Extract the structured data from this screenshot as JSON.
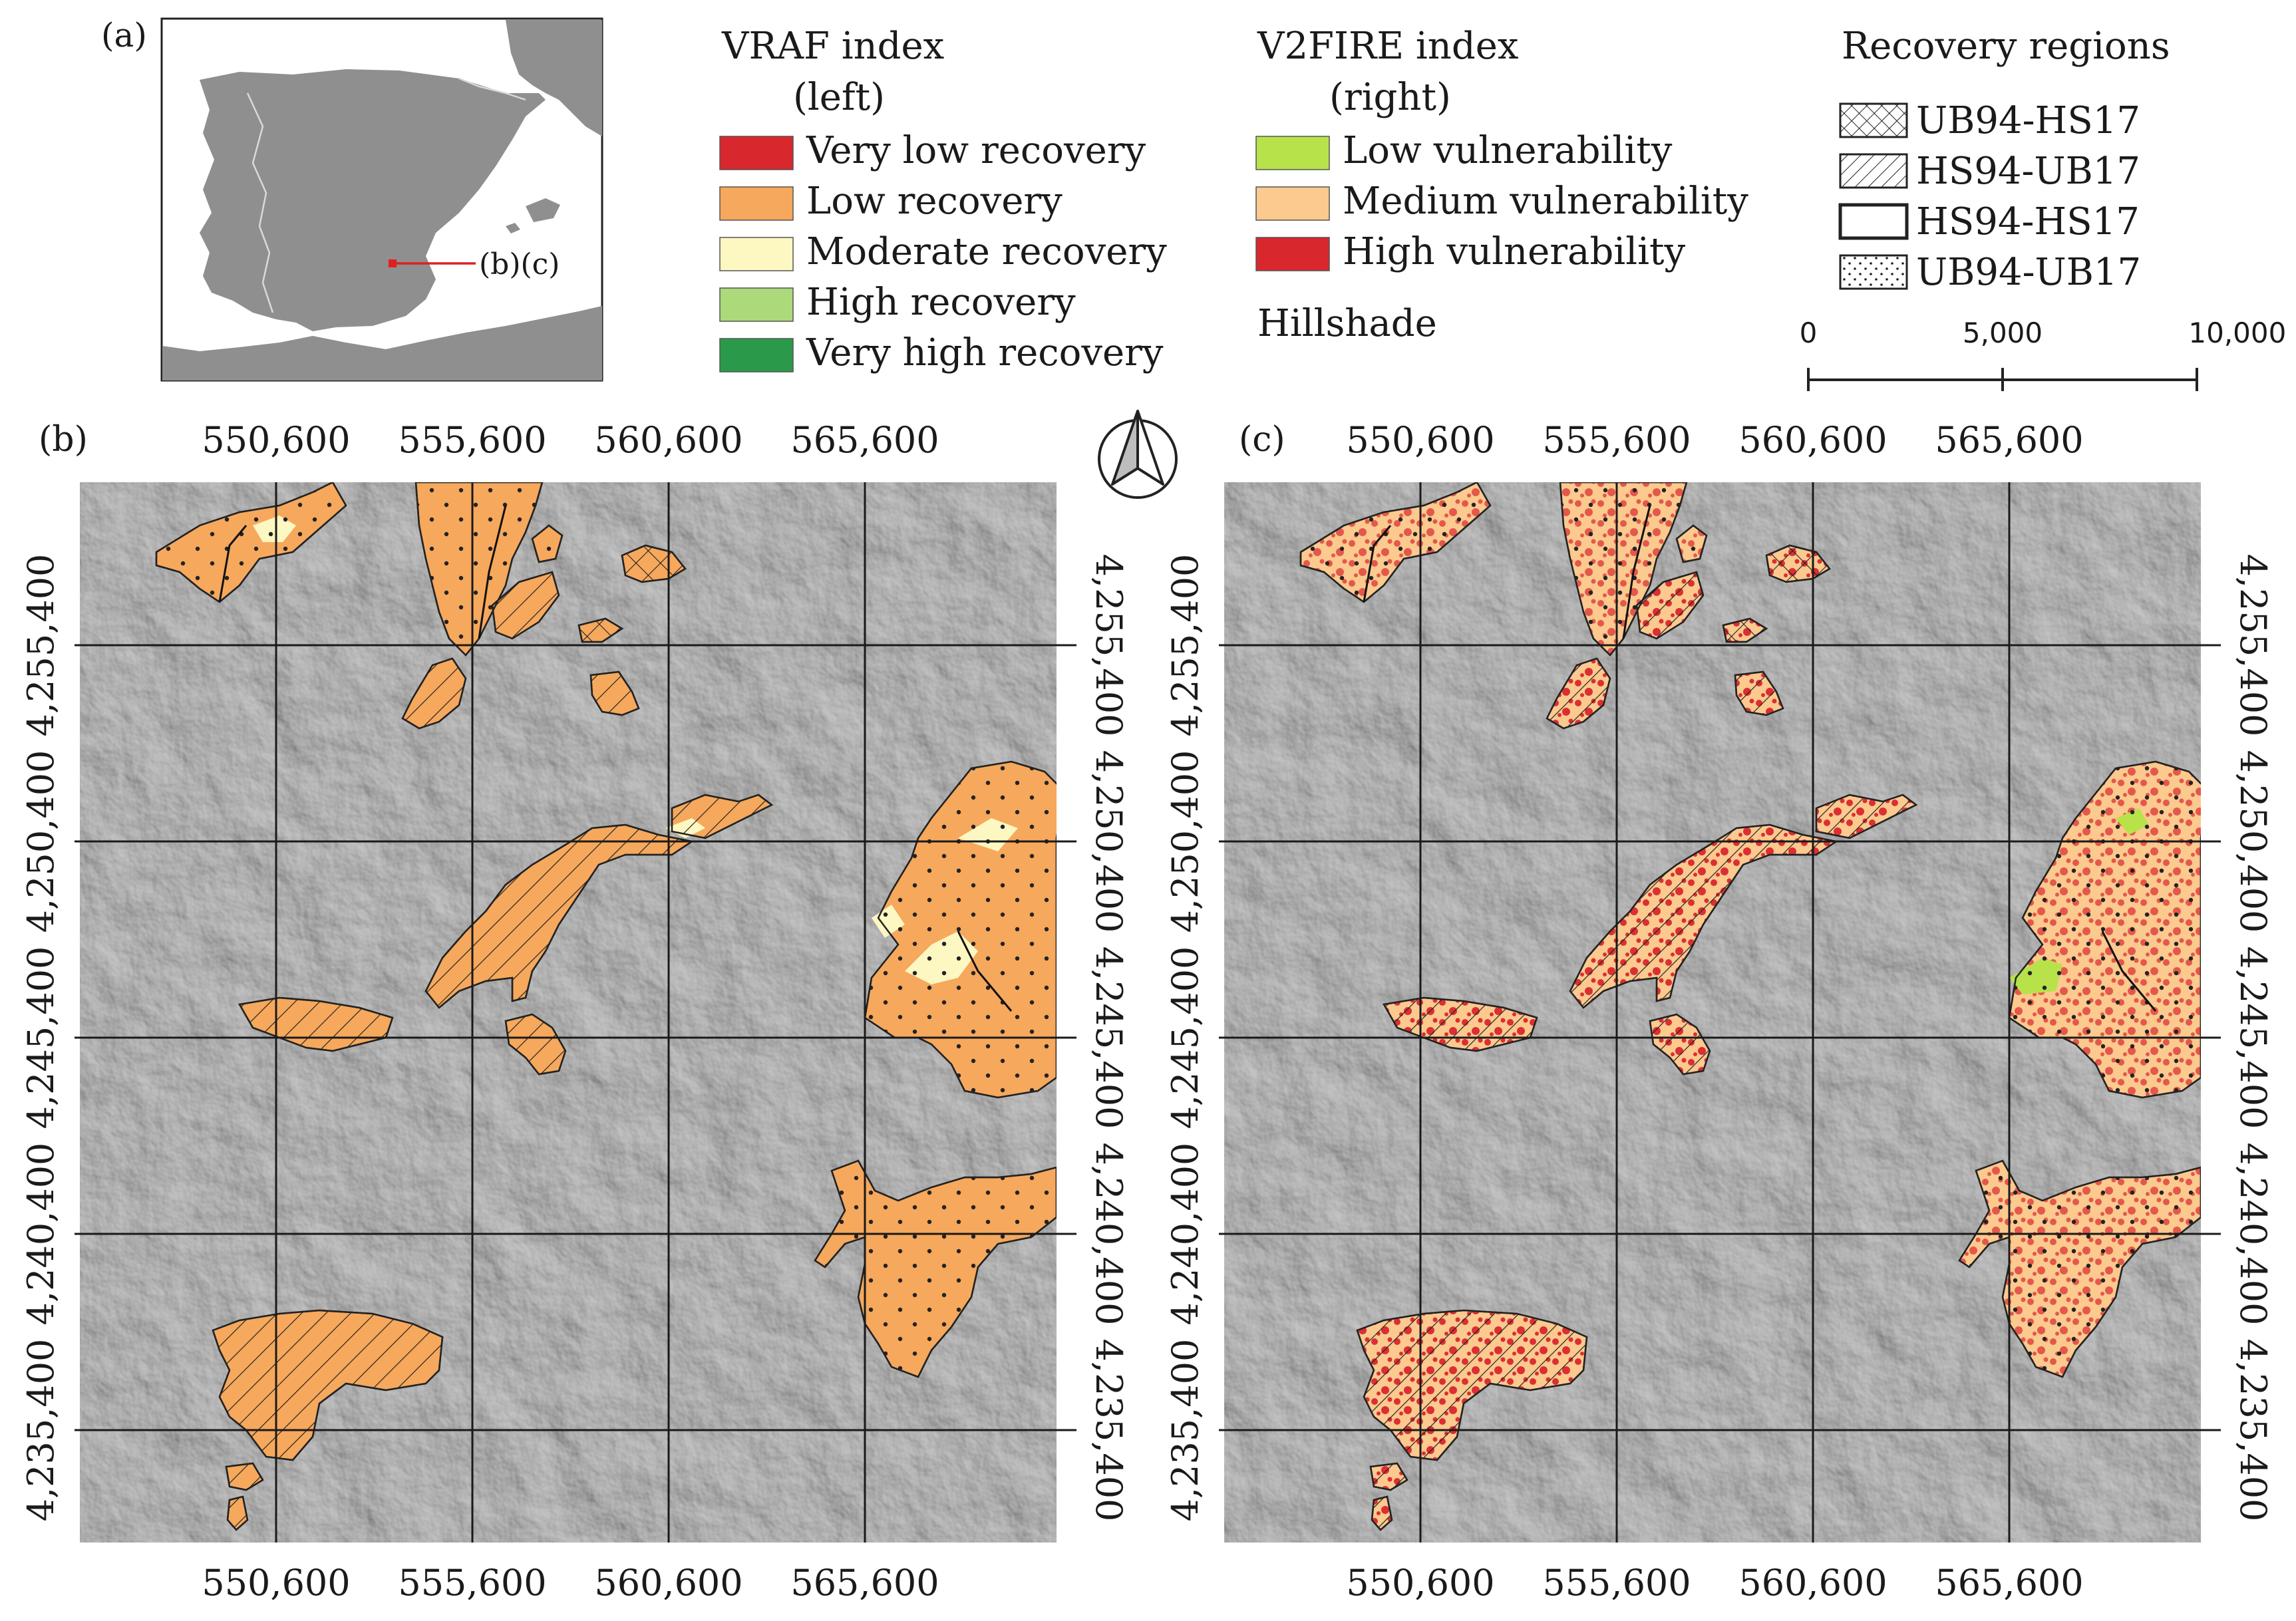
{
  "panels": {
    "a": "(a)",
    "b": "(b)",
    "c": "(c)",
    "inset_callout": "(b)(c)"
  },
  "legend_vraf": {
    "title": "VRAF index",
    "subtitle": "(left)",
    "items": [
      {
        "label": "Very low recovery",
        "color": "#d9272e"
      },
      {
        "label": "Low recovery",
        "color": "#f6a85c"
      },
      {
        "label": "Moderate recovery",
        "color": "#fdf7c2"
      },
      {
        "label": "High recovery",
        "color": "#acd97a"
      },
      {
        "label": "Very high recovery",
        "color": "#2a9a4a"
      }
    ]
  },
  "legend_v2fire": {
    "title": "V2FIRE index",
    "subtitle": "(right)",
    "items": [
      {
        "label": "Low vulnerability",
        "color": "#b8e24a"
      },
      {
        "label": "Medium vulnerability",
        "color": "#fcc98e"
      },
      {
        "label": "High vulnerability",
        "color": "#d9272e"
      }
    ],
    "extra": "Hillshade"
  },
  "legend_regions": {
    "title": "Recovery regions",
    "items": [
      {
        "label": "UB94-HS17",
        "pattern": "crosshatch"
      },
      {
        "label": "HS94-UB17",
        "pattern": "diagonal"
      },
      {
        "label": "HS94-HS17",
        "pattern": "outline"
      },
      {
        "label": "UB94-UB17",
        "pattern": "dots"
      }
    ]
  },
  "scale_bar": {
    "labels": [
      "0",
      "5,000",
      "10,000 m"
    ]
  },
  "axes": {
    "x_ticks": [
      "550,600",
      "555,600",
      "560,600",
      "565,600"
    ],
    "y_ticks": [
      "4,255,400",
      "4,250,400",
      "4,245,400",
      "4,240,400",
      "4,235,400"
    ]
  },
  "colors": {
    "hillshade": "#8c8c8c",
    "land": "#8f8f8f",
    "sea": "#ffffff",
    "inset_marker": "#e0201e"
  }
}
